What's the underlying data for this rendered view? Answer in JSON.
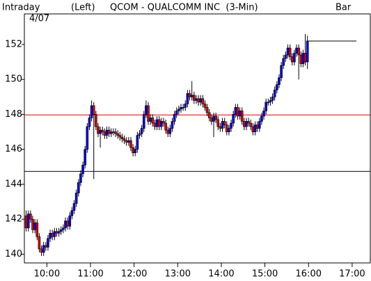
{
  "chart_data": {
    "type": "candlestick",
    "header": {
      "mode": "Intraday",
      "date": "4/07",
      "axis_side": "(Left)",
      "title": "QCOM - QUALCOMM INC  (3-Min)",
      "style": "Bar"
    },
    "up_color": "#0000ee",
    "down_color": "#dd0000",
    "x": [
      570,
      573,
      576,
      579,
      582,
      585,
      588,
      591,
      594,
      597,
      600,
      603,
      606,
      609,
      612,
      615,
      618,
      621,
      624,
      627,
      630,
      633,
      636,
      639,
      642,
      645,
      648,
      651,
      654,
      657,
      660,
      663,
      666,
      669,
      672,
      675,
      678,
      681,
      684,
      687,
      690,
      693,
      696,
      699,
      702,
      705,
      708,
      711,
      714,
      717,
      720,
      723,
      726,
      729,
      732,
      735,
      738,
      741,
      744,
      747,
      750,
      753,
      756,
      759,
      762,
      765,
      768,
      771,
      774,
      777,
      780,
      783,
      786,
      789,
      792,
      795,
      798,
      801,
      804,
      807,
      810,
      813,
      816,
      819,
      822,
      825,
      828,
      831,
      834,
      837,
      840,
      843,
      846,
      849,
      852,
      855,
      858,
      861,
      864,
      867,
      870,
      873,
      876,
      879,
      882,
      885,
      888,
      891,
      894,
      897,
      900,
      903,
      906,
      909,
      912,
      915,
      918,
      921,
      924,
      927,
      930,
      933,
      936,
      939,
      942,
      945,
      948,
      951,
      954,
      957
    ],
    "ohlc": [
      [
        142.2,
        142.5,
        141.3,
        141.5
      ],
      [
        141.5,
        142.5,
        141.3,
        142.3
      ],
      [
        142.3,
        142.5,
        141.8,
        142.0
      ],
      [
        142.0,
        142.2,
        141.2,
        141.4
      ],
      [
        141.4,
        142.0,
        141.2,
        141.8
      ],
      [
        141.8,
        142.0,
        140.8,
        141.0
      ],
      [
        141.0,
        141.2,
        140.1,
        140.3
      ],
      [
        140.3,
        140.5,
        139.9,
        140.1
      ],
      [
        140.1,
        140.7,
        139.9,
        140.5
      ],
      [
        140.5,
        140.7,
        140.2,
        140.4
      ],
      [
        140.4,
        141.1,
        140.2,
        140.9
      ],
      [
        140.9,
        141.4,
        140.7,
        141.2
      ],
      [
        141.2,
        141.4,
        140.8,
        141.0
      ],
      [
        141.0,
        141.5,
        140.8,
        141.3
      ],
      [
        141.3,
        141.5,
        141.0,
        141.2
      ],
      [
        141.2,
        141.5,
        141.0,
        141.3
      ],
      [
        141.3,
        141.6,
        141.1,
        141.4
      ],
      [
        141.4,
        141.7,
        141.2,
        141.5
      ],
      [
        141.5,
        142.1,
        141.3,
        141.9
      ],
      [
        141.9,
        142.1,
        141.4,
        141.6
      ],
      [
        141.6,
        142.4,
        141.4,
        142.2
      ],
      [
        142.2,
        142.7,
        142.0,
        142.5
      ],
      [
        142.5,
        143.1,
        142.3,
        142.9
      ],
      [
        142.9,
        143.7,
        142.7,
        143.5
      ],
      [
        143.5,
        144.3,
        143.3,
        144.1
      ],
      [
        144.1,
        144.8,
        143.9,
        144.6
      ],
      [
        144.6,
        145.3,
        144.4,
        145.1
      ],
      [
        145.1,
        146.2,
        144.9,
        146.0
      ],
      [
        146.0,
        147.5,
        145.8,
        147.3
      ],
      [
        147.3,
        148.0,
        147.1,
        147.8
      ],
      [
        147.8,
        148.8,
        147.6,
        148.5
      ],
      [
        148.5,
        148.7,
        144.3,
        148.0
      ],
      [
        148.0,
        148.2,
        147.1,
        147.3
      ],
      [
        147.3,
        147.5,
        146.7,
        146.9
      ],
      [
        146.9,
        147.3,
        146.1,
        147.1
      ],
      [
        147.1,
        147.3,
        146.8,
        147.0
      ],
      [
        147.0,
        147.2,
        146.6,
        146.8
      ],
      [
        146.8,
        147.3,
        146.6,
        147.1
      ],
      [
        147.1,
        147.3,
        146.7,
        146.9
      ],
      [
        146.9,
        147.2,
        146.7,
        147.0
      ],
      [
        147.0,
        147.2,
        146.8,
        147.0
      ],
      [
        147.0,
        147.2,
        146.7,
        146.9
      ],
      [
        146.9,
        147.1,
        146.6,
        146.8
      ],
      [
        146.8,
        147.0,
        146.5,
        146.7
      ],
      [
        146.7,
        146.9,
        146.4,
        146.6
      ],
      [
        146.6,
        146.8,
        146.3,
        146.5
      ],
      [
        146.5,
        146.7,
        146.2,
        146.4
      ],
      [
        146.4,
        146.7,
        146.2,
        146.5
      ],
      [
        146.5,
        146.7,
        145.9,
        146.1
      ],
      [
        146.1,
        146.3,
        145.6,
        145.8
      ],
      [
        145.8,
        146.2,
        145.6,
        146.0
      ],
      [
        146.0,
        147.0,
        145.8,
        146.8
      ],
      [
        146.8,
        147.1,
        146.6,
        146.9
      ],
      [
        146.9,
        147.4,
        146.7,
        147.2
      ],
      [
        147.2,
        148.2,
        147.0,
        148.0
      ],
      [
        148.0,
        148.8,
        147.8,
        148.5
      ],
      [
        148.5,
        148.7,
        147.4,
        147.6
      ],
      [
        147.6,
        148.0,
        147.4,
        147.8
      ],
      [
        147.8,
        148.0,
        147.3,
        147.5
      ],
      [
        147.5,
        147.7,
        147.1,
        147.3
      ],
      [
        147.3,
        147.9,
        147.1,
        147.7
      ],
      [
        147.7,
        147.9,
        147.1,
        147.3
      ],
      [
        147.3,
        147.8,
        147.1,
        147.6
      ],
      [
        147.6,
        147.8,
        147.3,
        147.5
      ],
      [
        147.5,
        147.7,
        146.9,
        147.1
      ],
      [
        147.1,
        147.3,
        146.7,
        146.9
      ],
      [
        146.9,
        147.4,
        146.7,
        147.2
      ],
      [
        147.2,
        147.8,
        147.0,
        147.6
      ],
      [
        147.6,
        148.2,
        147.4,
        148.0
      ],
      [
        148.0,
        148.4,
        147.8,
        148.2
      ],
      [
        148.2,
        148.5,
        148.0,
        148.3
      ],
      [
        148.3,
        148.6,
        148.1,
        148.4
      ],
      [
        148.4,
        148.6,
        148.2,
        148.4
      ],
      [
        148.4,
        148.8,
        148.2,
        148.6
      ],
      [
        148.6,
        149.4,
        148.4,
        149.2
      ],
      [
        149.2,
        149.4,
        148.8,
        149.0
      ],
      [
        149.0,
        149.9,
        148.8,
        149.1
      ],
      [
        149.1,
        149.3,
        148.6,
        148.8
      ],
      [
        148.8,
        149.1,
        148.6,
        148.9
      ],
      [
        148.9,
        149.1,
        148.5,
        148.7
      ],
      [
        148.7,
        149.1,
        148.5,
        148.9
      ],
      [
        148.9,
        149.1,
        148.4,
        148.6
      ],
      [
        148.6,
        148.8,
        148.2,
        148.4
      ],
      [
        148.4,
        148.6,
        147.9,
        148.1
      ],
      [
        148.1,
        148.3,
        147.6,
        147.8
      ],
      [
        147.8,
        148.0,
        147.4,
        147.6
      ],
      [
        147.6,
        148.1,
        146.7,
        147.9
      ],
      [
        147.9,
        148.1,
        147.5,
        147.7
      ],
      [
        147.7,
        147.9,
        147.1,
        147.3
      ],
      [
        147.3,
        147.5,
        147.0,
        147.2
      ],
      [
        147.2,
        147.8,
        147.0,
        147.6
      ],
      [
        147.6,
        147.8,
        147.2,
        147.4
      ],
      [
        147.4,
        147.6,
        146.8,
        147.0
      ],
      [
        147.0,
        147.4,
        146.8,
        147.2
      ],
      [
        147.2,
        147.7,
        147.0,
        147.5
      ],
      [
        147.5,
        148.2,
        147.3,
        148.0
      ],
      [
        148.0,
        148.6,
        147.8,
        148.4
      ],
      [
        148.4,
        148.6,
        147.7,
        147.9
      ],
      [
        147.9,
        148.4,
        147.7,
        148.2
      ],
      [
        148.2,
        148.4,
        147.4,
        147.6
      ],
      [
        147.6,
        147.8,
        147.1,
        147.3
      ],
      [
        147.3,
        147.8,
        147.1,
        147.6
      ],
      [
        147.6,
        147.8,
        147.3,
        147.5
      ],
      [
        147.5,
        147.7,
        147.1,
        147.3
      ],
      [
        147.3,
        147.5,
        146.8,
        147.0
      ],
      [
        147.0,
        147.6,
        146.8,
        147.4
      ],
      [
        147.4,
        147.6,
        147.0,
        147.2
      ],
      [
        147.2,
        147.8,
        147.0,
        147.6
      ],
      [
        147.6,
        148.1,
        147.4,
        147.9
      ],
      [
        147.9,
        148.4,
        147.7,
        148.2
      ],
      [
        148.2,
        148.9,
        148.0,
        148.7
      ],
      [
        148.7,
        148.9,
        148.5,
        148.7
      ],
      [
        148.7,
        149.0,
        148.5,
        148.8
      ],
      [
        148.8,
        149.2,
        148.6,
        149.0
      ],
      [
        149.0,
        149.6,
        148.8,
        149.4
      ],
      [
        149.4,
        149.9,
        149.2,
        149.7
      ],
      [
        149.7,
        150.3,
        149.5,
        150.1
      ],
      [
        150.1,
        151.0,
        149.9,
        150.8
      ],
      [
        150.8,
        151.4,
        150.6,
        151.2
      ],
      [
        151.2,
        151.6,
        151.0,
        151.4
      ],
      [
        151.4,
        152.0,
        151.2,
        151.8
      ],
      [
        151.8,
        152.0,
        151.1,
        151.3
      ],
      [
        151.3,
        151.5,
        150.8,
        151.0
      ],
      [
        151.0,
        151.7,
        150.8,
        151.5
      ],
      [
        151.5,
        152.0,
        151.3,
        151.8
      ],
      [
        151.8,
        152.0,
        150.0,
        151.4
      ],
      [
        151.4,
        151.6,
        150.7,
        150.9
      ],
      [
        150.9,
        151.7,
        150.7,
        151.5
      ],
      [
        151.5,
        152.6,
        150.8,
        151.0
      ],
      [
        151.0,
        152.5,
        150.6,
        152.2
      ]
    ],
    "hlines": [
      {
        "value": 147.97,
        "color": "#dd0000"
      },
      {
        "value": 144.74,
        "color": "#000040"
      }
    ],
    "xlim": [
      569,
      1045
    ],
    "xticks": [
      {
        "value": 600,
        "label": "10:00"
      },
      {
        "value": 660,
        "label": "11:00"
      },
      {
        "value": 720,
        "label": "12:00"
      },
      {
        "value": 780,
        "label": "13:00"
      },
      {
        "value": 840,
        "label": "14:00"
      },
      {
        "value": 900,
        "label": "15:00"
      },
      {
        "value": 960,
        "label": "16:00"
      },
      {
        "value": 1020,
        "label": "17:00"
      }
    ],
    "ylim": [
      139.5,
      153.75
    ],
    "yticks": [
      140,
      142,
      144,
      146,
      148,
      150,
      152
    ]
  }
}
